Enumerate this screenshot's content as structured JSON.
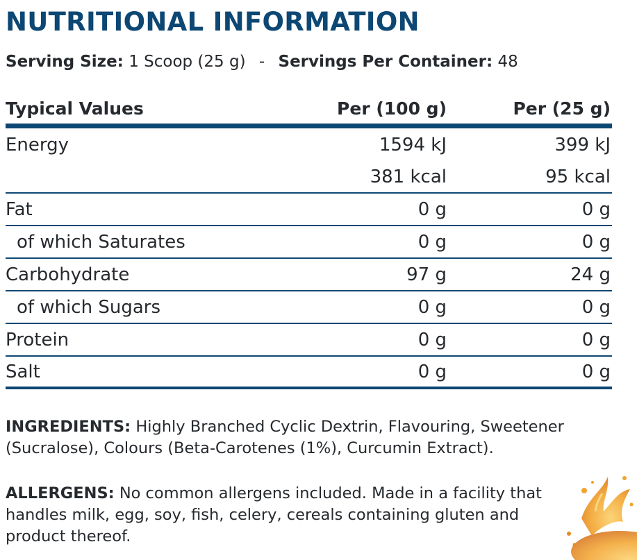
{
  "title": "NUTRITIONAL INFORMATION",
  "serving": {
    "size_label": "Serving Size:",
    "size_value": "1 Scoop (25 g)",
    "separator": "-",
    "per_container_label": "Servings Per Container:",
    "per_container_value": "48"
  },
  "table": {
    "headers": [
      "Typical Values",
      "Per (100 g)",
      "Per (25 g)"
    ],
    "rows": [
      {
        "label": "Energy",
        "per100": "1594 kJ",
        "per25": "399 kJ"
      },
      {
        "label": "",
        "per100": "381 kcal",
        "per25": "95 kcal"
      },
      {
        "label": "Fat",
        "per100": "0 g",
        "per25": "0 g"
      },
      {
        "label": "of which Saturates",
        "per100": "0 g",
        "per25": "0 g"
      },
      {
        "label": "Carbohydrate",
        "per100": "97 g",
        "per25": "24 g"
      },
      {
        "label": "of which Sugars",
        "per100": "0 g",
        "per25": "0 g"
      },
      {
        "label": "Protein",
        "per100": "0 g",
        "per25": "0 g"
      },
      {
        "label": "Salt",
        "per100": "0 g",
        "per25": "0 g"
      }
    ]
  },
  "ingredients": {
    "label": "INGREDIENTS:",
    "text": "Highly Branched Cyclic Dextrin, Flavouring, Sweetener (Sucralose), Colours (Beta-Carotenes (1%), Curcumin Extract)."
  },
  "allergens": {
    "label": "ALLERGENS:",
    "text": "No common allergens included. Made in a facility that handles milk, egg, soy, fish, celery, cereals containing gluten and product thereof."
  },
  "colors": {
    "brand_blue": "#0d4773",
    "text": "#262a2e",
    "splash_orange": "#f2a32c"
  },
  "decoration": "orange-splash-image"
}
